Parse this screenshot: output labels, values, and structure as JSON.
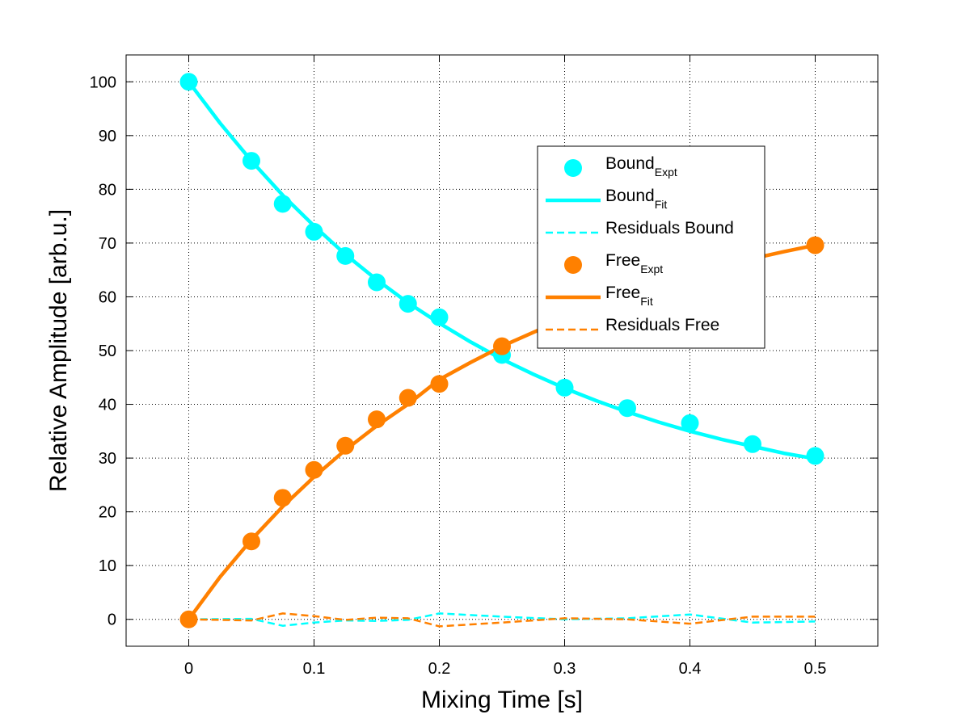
{
  "chart_data": {
    "type": "line",
    "title": "",
    "xlabel": "Mixing Time [s]",
    "ylabel": "Relative Amplitude [arb.u.]",
    "xlim": [
      -0.05,
      0.55
    ],
    "ylim": [
      -5,
      105
    ],
    "xticks": [
      0,
      0.1,
      0.2,
      0.3,
      0.4,
      0.5
    ],
    "xtick_labels": [
      "0",
      "0.1",
      "0.2",
      "0.3",
      "0.4",
      "0.5"
    ],
    "yticks": [
      0,
      10,
      20,
      30,
      40,
      50,
      60,
      70,
      80,
      90,
      100
    ],
    "ytick_labels": [
      "0",
      "10",
      "20",
      "30",
      "40",
      "50",
      "60",
      "70",
      "80",
      "90",
      "100"
    ],
    "grid": true,
    "legend_position": "upper-right-inset",
    "colors": {
      "bound": "#00FFFF",
      "free": "#FF8000"
    },
    "x": [
      0,
      0.05,
      0.075,
      0.1,
      0.125,
      0.15,
      0.175,
      0.2,
      0.25,
      0.3,
      0.35,
      0.4,
      0.45,
      0.5
    ],
    "series": [
      {
        "name": "Bound_Expt",
        "legend_main": "Bound",
        "legend_sub": "Expt",
        "style": "marker",
        "color": "#00FFFF",
        "values": [
          100,
          85.3,
          77.3,
          72.1,
          67.6,
          62.7,
          58.7,
          56.2,
          49.2,
          43.1,
          39.3,
          36.5,
          32.6,
          30.4
        ]
      },
      {
        "name": "Bound_Fit",
        "legend_main": "Bound",
        "legend_sub": "Fit",
        "style": "solid",
        "color": "#00FFFF",
        "x": [
          0,
          0.025,
          0.05,
          0.075,
          0.1,
          0.125,
          0.15,
          0.175,
          0.2,
          0.225,
          0.25,
          0.275,
          0.3,
          0.325,
          0.35,
          0.375,
          0.4,
          0.425,
          0.45,
          0.475,
          0.5
        ],
        "values": [
          100,
          92.3,
          85.3,
          78.9,
          73.2,
          67.9,
          63.2,
          58.9,
          55.1,
          51.6,
          48.4,
          45.6,
          43.0,
          40.7,
          38.6,
          36.7,
          35.0,
          33.5,
          32.2,
          30.9,
          29.9
        ]
      },
      {
        "name": "Residuals Bound",
        "legend_main": "Residuals Bound",
        "legend_sub": "",
        "style": "dashed",
        "color": "#00FFFF",
        "values": [
          0,
          0.1,
          -1.2,
          -0.6,
          -0.2,
          -0.3,
          -0.1,
          1.1,
          0.5,
          0.0,
          0.2,
          0.9,
          -0.6,
          -0.4
        ]
      },
      {
        "name": "Free_Expt",
        "legend_main": "Free",
        "legend_sub": "Expt",
        "style": "marker",
        "color": "#FF8000",
        "values": [
          0,
          14.5,
          22.6,
          27.8,
          32.3,
          37.2,
          41.2,
          43.8,
          50.8,
          55.1,
          59.9,
          63.8,
          67.2,
          69.6
        ]
      },
      {
        "name": "Free_Fit",
        "legend_main": "Free",
        "legend_sub": "Fit",
        "style": "solid",
        "color": "#FF8000",
        "x": [
          0,
          0.025,
          0.05,
          0.075,
          0.1,
          0.125,
          0.15,
          0.175,
          0.2,
          0.225,
          0.25,
          0.275,
          0.3,
          0.325,
          0.35,
          0.375,
          0.4,
          0.425,
          0.45,
          0.475,
          0.5
        ],
        "values": [
          0,
          7.9,
          14.8,
          21.0,
          26.5,
          31.5,
          36.0,
          40.0,
          44.6,
          47.8,
          50.8,
          53.4,
          55.9,
          58.2,
          60.3,
          62.2,
          64.0,
          65.6,
          67.1,
          68.4,
          69.6
        ]
      },
      {
        "name": "Residuals Free",
        "legend_main": "Residuals Free",
        "legend_sub": "",
        "style": "dashed",
        "color": "#FF8000",
        "values": [
          0,
          -0.2,
          1.1,
          0.6,
          -0.1,
          0.3,
          0.2,
          -1.3,
          -0.6,
          0.2,
          0.0,
          -0.8,
          0.5,
          0.5
        ]
      }
    ]
  }
}
